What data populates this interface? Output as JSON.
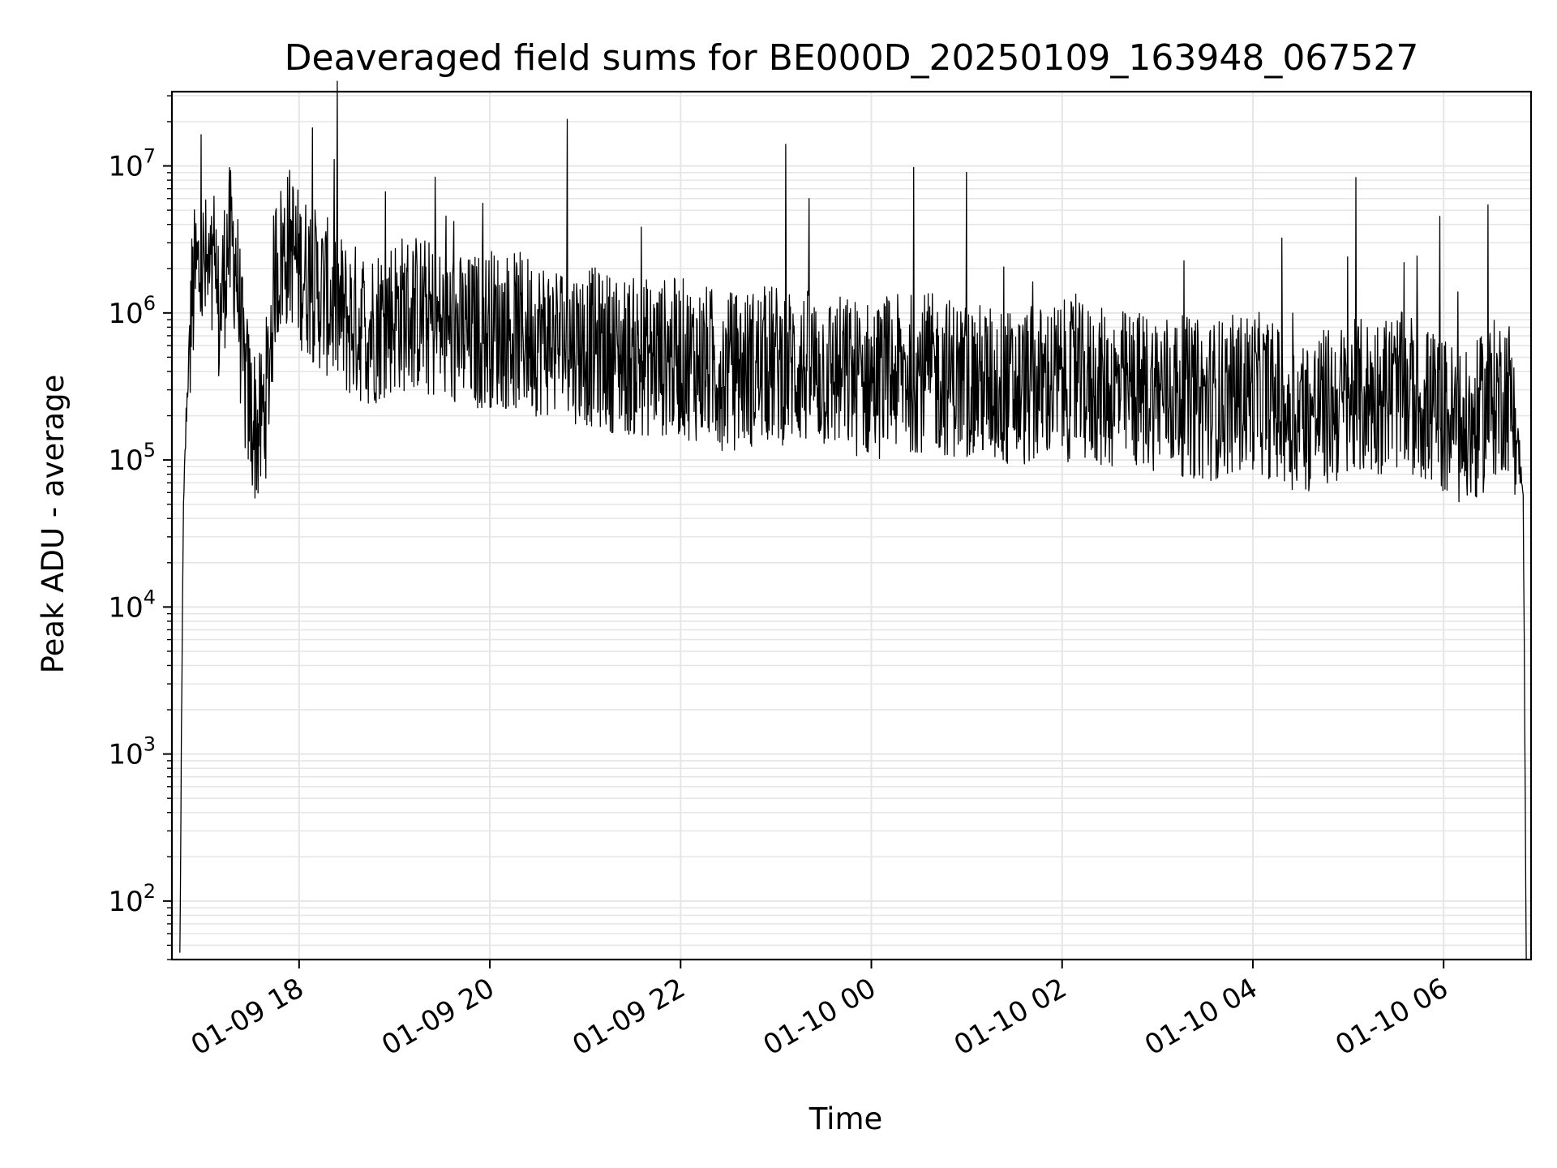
{
  "chart_data": {
    "type": "line",
    "title": "Deaveraged field sums for BE000D_20250109_163948_067527",
    "xlabel": "Time",
    "ylabel": "Peak ADU - average",
    "yscale": "log",
    "ylim": [
      40,
      32000000
    ],
    "xlim": [
      "2025-01-09 16:40",
      "2025-01-10 06:55"
    ],
    "grid": true,
    "line_color": "#000000",
    "grid_color": "#e6e6e6",
    "x_ticks": [
      {
        "value": "2025-01-09 18:00",
        "label": "01-09 18"
      },
      {
        "value": "2025-01-09 20:00",
        "label": "01-09 20"
      },
      {
        "value": "2025-01-09 22:00",
        "label": "01-09 22"
      },
      {
        "value": "2025-01-10 00:00",
        "label": "01-10 00"
      },
      {
        "value": "2025-01-10 02:00",
        "label": "01-10 02"
      },
      {
        "value": "2025-01-10 04:00",
        "label": "01-10 04"
      },
      {
        "value": "2025-01-10 06:00",
        "label": "01-10 06"
      }
    ],
    "y_ticks": [
      {
        "value": 100,
        "mantissa": "10",
        "exponent": "2"
      },
      {
        "value": 1000,
        "mantissa": "10",
        "exponent": "3"
      },
      {
        "value": 10000,
        "mantissa": "10",
        "exponent": "4"
      },
      {
        "value": 100000,
        "mantissa": "10",
        "exponent": "5"
      },
      {
        "value": 1000000,
        "mantissa": "10",
        "exponent": "6"
      },
      {
        "value": 10000000,
        "mantissa": "10",
        "exponent": "7"
      }
    ],
    "series": [
      {
        "x": [
          "2025-01-09 16:45",
          "2025-01-09 16:47",
          "2025-01-09 16:49",
          "2025-01-09 16:52",
          "2025-01-09 16:55",
          "2025-01-09 17:00",
          "2025-01-09 17:05",
          "2025-01-09 17:10",
          "2025-01-09 17:15",
          "2025-01-09 17:20",
          "2025-01-09 17:25",
          "2025-01-09 17:30",
          "2025-01-09 17:35",
          "2025-01-09 17:40",
          "2025-01-09 17:45",
          "2025-01-09 17:50",
          "2025-01-09 17:55",
          "2025-01-09 18:00",
          "2025-01-09 18:05",
          "2025-01-09 18:10",
          "2025-01-09 18:20",
          "2025-01-09 18:30",
          "2025-01-09 18:45",
          "2025-01-09 19:00",
          "2025-01-09 19:15",
          "2025-01-09 19:30",
          "2025-01-09 19:45",
          "2025-01-09 20:00",
          "2025-01-09 20:30",
          "2025-01-09 21:00",
          "2025-01-09 21:30",
          "2025-01-09 22:00",
          "2025-01-09 22:30",
          "2025-01-09 23:00",
          "2025-01-09 23:30",
          "2025-01-10 00:00",
          "2025-01-10 00:30",
          "2025-01-10 01:00",
          "2025-01-10 01:30",
          "2025-01-10 02:00",
          "2025-01-10 02:30",
          "2025-01-10 03:00",
          "2025-01-10 03:30",
          "2025-01-10 04:00",
          "2025-01-10 04:30",
          "2025-01-10 05:00",
          "2025-01-10 05:30",
          "2025-01-10 05:45",
          "2025-01-10 06:00",
          "2025-01-10 06:15",
          "2025-01-10 06:30",
          "2025-01-10 06:40",
          "2025-01-10 06:45",
          "2025-01-10 06:50",
          "2025-01-10 06:52"
        ],
        "y": [
          40,
          30000,
          200000,
          1000000,
          1800000,
          2000000,
          1500000,
          900000,
          3000000,
          2500000,
          400000,
          200000,
          150000,
          300000,
          2000000,
          2500000,
          3000000,
          2000000,
          1800000,
          1500000,
          1200000,
          900000,
          800000,
          1000000,
          1000000,
          800000,
          700000,
          800000,
          700000,
          600000,
          500000,
          500000,
          400000,
          450000,
          400000,
          350000,
          400000,
          350000,
          300000,
          350000,
          300000,
          300000,
          250000,
          300000,
          200000,
          250000,
          300000,
          250000,
          200000,
          150000,
          250000,
          300000,
          200000,
          60000,
          40
        ]
      }
    ]
  }
}
